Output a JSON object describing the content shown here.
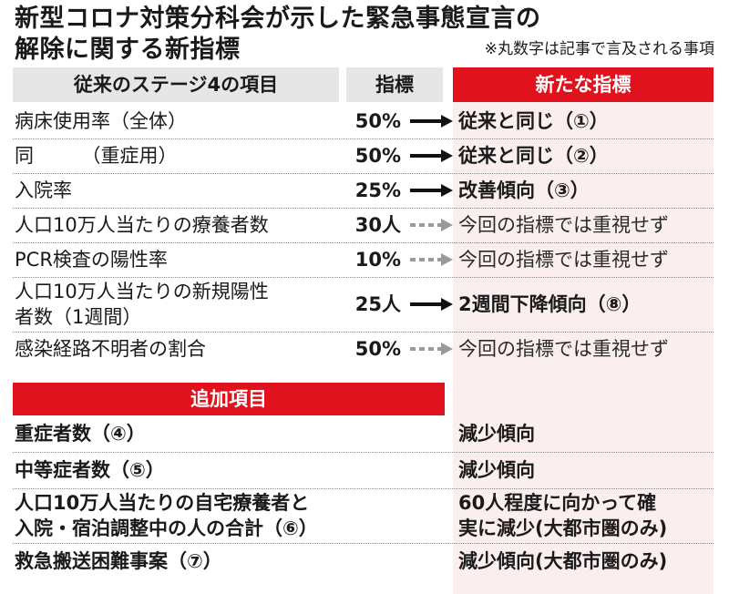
{
  "title_line1": "新型コロナ対策分科会が示した緊急事態宣言の",
  "title_line2": "解除に関する新指標",
  "note": "※丸数字は記事で言及される事項",
  "headers": {
    "old": "従来のステージ4の項目",
    "indicator": "指標",
    "new": "新たな指標"
  },
  "rows": [
    {
      "label": "病床使用率（全体）",
      "value": "50%",
      "arrow": "solid",
      "new": "従来と同じ（①）",
      "bold": true
    },
    {
      "label": "同　　　（重症用）",
      "value": "50%",
      "arrow": "solid",
      "new": "従来と同じ（②）",
      "bold": true
    },
    {
      "label": "入院率",
      "value": "25%",
      "arrow": "solid",
      "new": "改善傾向（③）",
      "bold": true
    },
    {
      "label": "人口10万人当たりの療養者数",
      "value": "30人",
      "arrow": "dashed",
      "new": "今回の指標では重視せず",
      "bold": false
    },
    {
      "label": "PCR検査の陽性率",
      "value": "10%",
      "arrow": "dashed",
      "new": "今回の指標では重視せず",
      "bold": false
    },
    {
      "label": "人口10万人当たりの新規陽性",
      "label2": "者数（1週間）",
      "value": "25人",
      "arrow": "solid",
      "new": "2週間下降傾向（⑧）",
      "bold": true
    },
    {
      "label": "感染経路不明者の割合",
      "value": "50%",
      "arrow": "dashed",
      "new": "今回の指標では重視せず",
      "bold": false
    }
  ],
  "additional": {
    "header": "追加項目",
    "rows": [
      {
        "label": "重症者数（④）",
        "new": "減少傾向"
      },
      {
        "label": "中等症者数（⑤）",
        "new": "減少傾向"
      },
      {
        "label": "人口10万人当たりの自宅療養者と",
        "label2": "入院・宿泊調整中の人の合計（⑥）",
        "new": "60人程度に向かって確",
        "new2": "実に減少(大都市圏のみ)"
      },
      {
        "label": "救急搬送困難事案（⑦）",
        "new": "減少傾向(大都市圏のみ)"
      }
    ]
  },
  "colors": {
    "accent": "#e0121d",
    "header_gray": "#e6e6e6",
    "pink": "#fbeeee",
    "arrow_gray": "#9a9a9a"
  }
}
